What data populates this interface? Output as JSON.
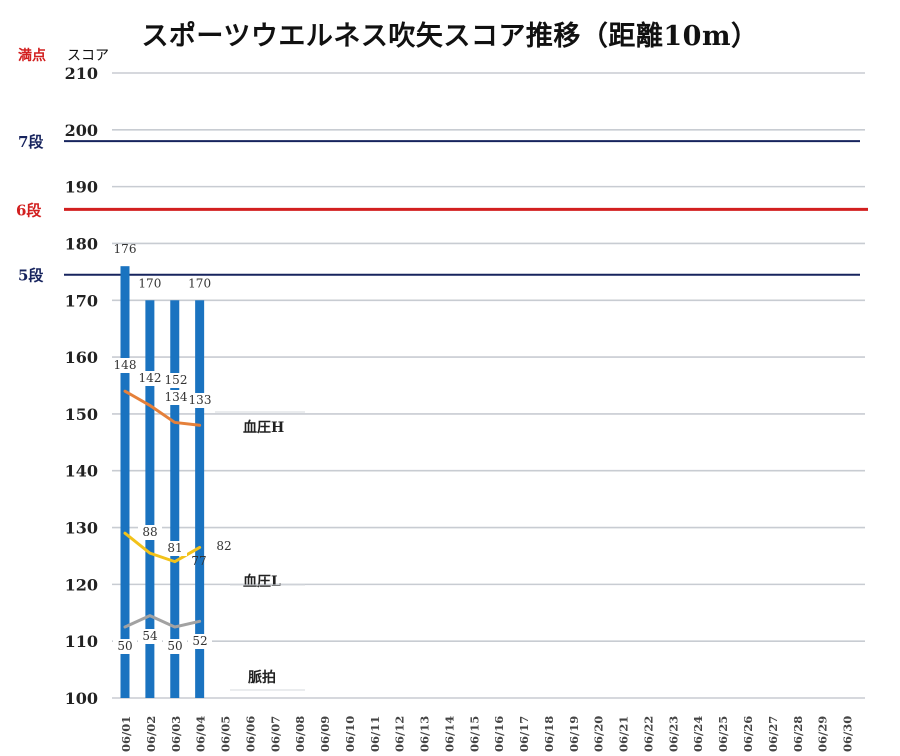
{
  "title": "スポーツウエルネス吹矢スコア推移（距離10m）",
  "labels": {
    "max_score": "満点",
    "y_unit": "スコア"
  },
  "colors": {
    "score_bar": "#1a73c0",
    "dan_line": "#17245e",
    "dan6_line": "#d21f1f",
    "gridline": "#c8ccd2",
    "bp_high": "#e5803a",
    "bp_low": "#f2c21a",
    "pulse": "#a2a2a2"
  },
  "chart_data": {
    "type": "bar",
    "title": "スポーツウエルネス吹矢スコア推移（距離10m）",
    "ylabel": "スコア",
    "ylim": [
      100,
      210
    ],
    "grid": true,
    "yticks": [
      100,
      110,
      120,
      130,
      140,
      150,
      160,
      170,
      180,
      190,
      200,
      210
    ],
    "categories": [
      "06/01",
      "06/02",
      "06/03",
      "06/04",
      "06/05",
      "06/06",
      "06/07",
      "06/08",
      "06/09",
      "06/10",
      "06/11",
      "06/12",
      "06/13",
      "06/14",
      "06/15",
      "06/16",
      "06/17",
      "06/18",
      "06/19",
      "06/20",
      "06/21",
      "06/22",
      "06/23",
      "06/24",
      "06/25",
      "06/26",
      "06/27",
      "06/28",
      "06/29",
      "06/30"
    ],
    "bars": {
      "values": [
        176,
        170,
        170,
        170
      ],
      "labels": [
        "176",
        "170",
        "",
        "170"
      ]
    },
    "lines": [
      {
        "name": "血圧H",
        "color": "#e5803a",
        "values": [
          154,
          151.5,
          148.5,
          148
        ],
        "labels": [
          "148",
          "142",
          "152\n134",
          "133"
        ]
      },
      {
        "name": "血圧L",
        "color": "#f2c21a",
        "values": [
          129,
          125.5,
          124,
          126.5
        ],
        "labels": [
          "",
          "88",
          "81",
          "82"
        ]
      },
      {
        "name": "脈拍",
        "color": "#a2a2a2",
        "values": [
          112.5,
          114.5,
          112.5,
          113.5
        ],
        "labels": [
          "50",
          "54",
          "50",
          "52"
        ]
      }
    ],
    "reference_lines": [
      {
        "label": "満点",
        "value": 210,
        "color": "#d21f1f"
      },
      {
        "label": "7段",
        "value": 198,
        "color": "#17245e"
      },
      {
        "label": "6段",
        "value": 186,
        "color": "#d21f1f"
      },
      {
        "label": "5段",
        "value": 174.5,
        "color": "#17245e"
      }
    ],
    "series_labels": [
      "血圧H",
      "血圧L",
      "脈拍"
    ],
    "extra_labels": [
      "77"
    ]
  }
}
